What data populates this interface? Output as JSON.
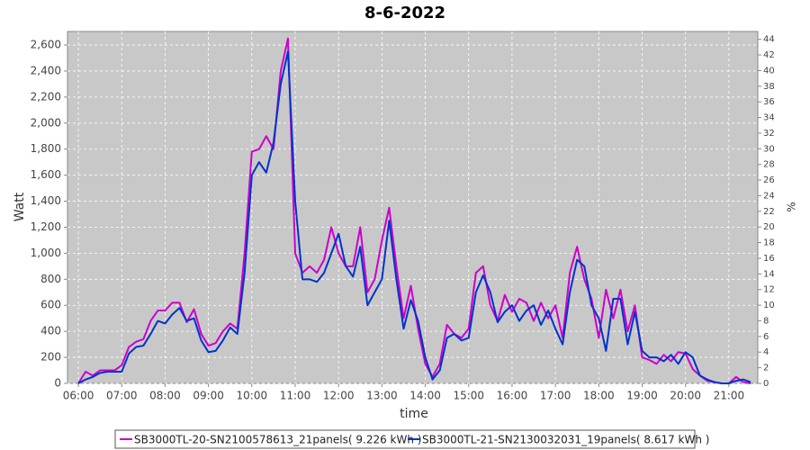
{
  "chart_data": {
    "type": "line",
    "title": "8-6-2022",
    "xlabel": "time",
    "ylabel": "Watt",
    "y2label": "%",
    "x": [
      360,
      370,
      380,
      390,
      400,
      410,
      420,
      430,
      440,
      450,
      460,
      470,
      480,
      490,
      500,
      510,
      520,
      530,
      540,
      550,
      560,
      570,
      580,
      590,
      600,
      610,
      620,
      630,
      640,
      650,
      660,
      670,
      680,
      690,
      700,
      710,
      720,
      730,
      740,
      750,
      760,
      770,
      780,
      790,
      800,
      810,
      820,
      830,
      840,
      850,
      860,
      870,
      880,
      890,
      900,
      910,
      920,
      930,
      940,
      950,
      960,
      970,
      980,
      990,
      1000,
      1010,
      1020,
      1030,
      1040,
      1050,
      1060,
      1070,
      1080,
      1090,
      1100,
      1110,
      1120,
      1130,
      1140,
      1150,
      1160,
      1170,
      1180,
      1190,
      1200,
      1210,
      1220,
      1230,
      1240,
      1250,
      1260,
      1270,
      1280,
      1290
    ],
    "series": [
      {
        "name": "SB3000TL-20-SN2100578613_21panels( 9.226 kWh )",
        "color": "#cc00cc",
        "values": [
          0,
          90,
          60,
          100,
          100,
          100,
          140,
          280,
          320,
          340,
          480,
          560,
          560,
          620,
          620,
          470,
          570,
          380,
          290,
          310,
          400,
          460,
          420,
          1000,
          1780,
          1800,
          1900,
          1800,
          2400,
          2650,
          1000,
          850,
          900,
          850,
          950,
          1200,
          1000,
          900,
          900,
          1200,
          700,
          800,
          1100,
          1350,
          900,
          500,
          750,
          420,
          150,
          50,
          150,
          450,
          380,
          350,
          420,
          850,
          900,
          600,
          480,
          680,
          550,
          650,
          620,
          480,
          620,
          500,
          600,
          350,
          850,
          1050,
          800,
          650,
          350,
          720,
          500,
          720,
          400,
          600,
          200,
          180,
          150,
          220,
          170,
          240,
          230,
          110,
          60,
          20,
          10,
          0,
          0,
          50,
          10,
          0
        ]
      },
      {
        "name": "SB3000TL-21-SN2130032031_19panels( 8.617 kWh )",
        "color": "#0033cc",
        "values": [
          0,
          30,
          50,
          80,
          90,
          90,
          90,
          230,
          280,
          290,
          380,
          480,
          460,
          530,
          580,
          480,
          500,
          330,
          240,
          250,
          330,
          430,
          380,
          850,
          1600,
          1700,
          1620,
          1850,
          2300,
          2550,
          1400,
          800,
          800,
          780,
          850,
          1000,
          1150,
          900,
          820,
          1050,
          600,
          700,
          800,
          1250,
          800,
          420,
          640,
          480,
          200,
          30,
          100,
          350,
          380,
          330,
          350,
          700,
          830,
          700,
          470,
          550,
          600,
          480,
          560,
          600,
          450,
          560,
          420,
          300,
          700,
          950,
          900,
          600,
          500,
          250,
          650,
          650,
          300,
          550,
          250,
          200,
          200,
          170,
          220,
          150,
          240,
          200,
          60,
          30,
          10,
          0,
          0,
          20,
          30,
          10
        ]
      }
    ],
    "xlim": [
      345,
      1300
    ],
    "xticks": [
      {
        "value": 360,
        "label": "06:00"
      },
      {
        "value": 420,
        "label": "07:00"
      },
      {
        "value": 480,
        "label": "08:00"
      },
      {
        "value": 540,
        "label": "09:00"
      },
      {
        "value": 600,
        "label": "10:00"
      },
      {
        "value": 660,
        "label": "11:00"
      },
      {
        "value": 720,
        "label": "12:00"
      },
      {
        "value": 780,
        "label": "13:00"
      },
      {
        "value": 840,
        "label": "14:00"
      },
      {
        "value": 900,
        "label": "15:00"
      },
      {
        "value": 960,
        "label": "16:00"
      },
      {
        "value": 1020,
        "label": "17:00"
      },
      {
        "value": 1080,
        "label": "18:00"
      },
      {
        "value": 1140,
        "label": "19:00"
      },
      {
        "value": 1200,
        "label": "20:00"
      },
      {
        "value": 1260,
        "label": "21:00"
      }
    ],
    "ylim": [
      0,
      2704
    ],
    "yticks": [
      0,
      200,
      400,
      600,
      800,
      {
        "value": 1000,
        "label": "1,000"
      },
      {
        "value": 1200,
        "label": "1,200"
      },
      {
        "value": 1400,
        "label": "1,400"
      },
      {
        "value": 1600,
        "label": "1,600"
      },
      {
        "value": 1800,
        "label": "1,800"
      },
      {
        "value": 2000,
        "label": "2,000"
      },
      {
        "value": 2200,
        "label": "2,200"
      },
      {
        "value": 2400,
        "label": "2,400"
      },
      {
        "value": 2600,
        "label": "2,600"
      }
    ],
    "y2lim": [
      0,
      45
    ],
    "y2ticks": [
      0,
      2,
      4,
      6,
      8,
      10,
      12,
      14,
      16,
      18,
      20,
      22,
      24,
      26,
      28,
      30,
      32,
      34,
      36,
      38,
      40,
      42,
      44
    ],
    "grid": true,
    "legend": "bottom"
  }
}
